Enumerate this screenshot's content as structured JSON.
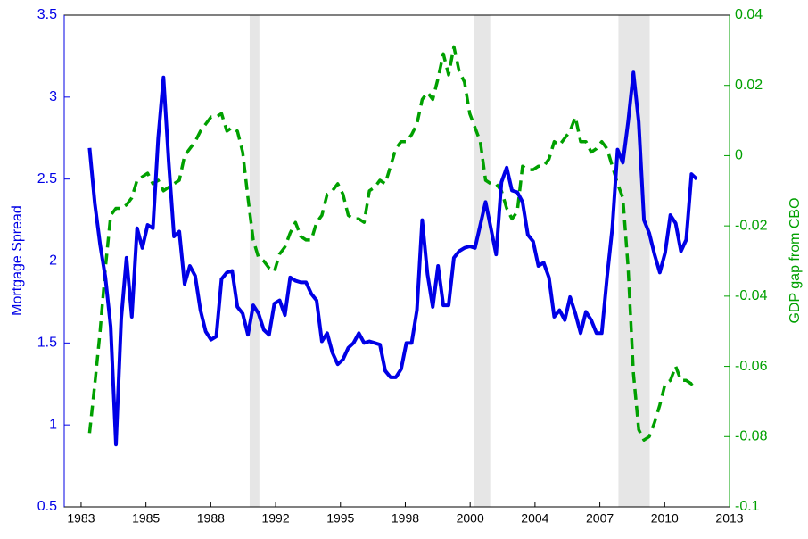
{
  "chart_data": {
    "type": "line",
    "y_label": "Mortgage Spread",
    "y2_label": "GDP gap from CBO",
    "x": [
      1983,
      1983.25,
      1983.5,
      1983.75,
      1984,
      1984.25,
      1984.5,
      1984.75,
      1985,
      1985.25,
      1985.5,
      1985.75,
      1986,
      1986.25,
      1986.5,
      1986.75,
      1987,
      1987.25,
      1987.5,
      1987.75,
      1988,
      1988.25,
      1988.5,
      1988.75,
      1989,
      1989.25,
      1989.5,
      1989.75,
      1990,
      1990.25,
      1990.5,
      1990.75,
      1991,
      1991.25,
      1991.5,
      1991.75,
      1992,
      1992.25,
      1992.5,
      1992.75,
      1993,
      1993.25,
      1993.5,
      1993.75,
      1994,
      1994.25,
      1994.5,
      1994.75,
      1995,
      1995.25,
      1995.5,
      1995.75,
      1996,
      1996.25,
      1996.5,
      1996.75,
      1997,
      1997.25,
      1997.5,
      1997.75,
      1998,
      1998.25,
      1998.5,
      1998.75,
      1999,
      1999.25,
      1999.5,
      1999.75,
      2000,
      2000.25,
      2000.5,
      2000.75,
      2001,
      2001.25,
      2001.5,
      2001.75,
      2002,
      2002.25,
      2002.5,
      2002.75,
      2003,
      2003.25,
      2003.5,
      2003.75,
      2004,
      2004.25,
      2004.5,
      2004.75,
      2005,
      2005.25,
      2005.5,
      2005.75,
      2006,
      2006.25,
      2006.5,
      2006.75,
      2007,
      2007.25,
      2007.5,
      2007.75,
      2008,
      2008.25,
      2008.5,
      2008.75,
      2009,
      2009.25,
      2009.5,
      2009.75,
      2010,
      2010.25,
      2010.5,
      2010.75,
      2011,
      2011.25,
      2011.5,
      2011.75
    ],
    "series": [
      {
        "color": "#0000e6",
        "values": [
          2.69,
          2.35,
          2.1,
          1.9,
          1.6,
          0.88,
          1.65,
          2.02,
          1.66,
          2.2,
          2.08,
          2.22,
          2.2,
          2.75,
          3.12,
          2.6,
          2.15,
          2.18,
          1.86,
          1.97,
          1.91,
          1.7,
          1.57,
          1.52,
          1.54,
          1.89,
          1.93,
          1.94,
          1.72,
          1.68,
          1.55,
          1.73,
          1.68,
          1.58,
          1.55,
          1.74,
          1.76,
          1.67,
          1.9,
          1.88,
          1.87,
          1.87,
          1.8,
          1.76,
          1.51,
          1.56,
          1.44,
          1.37,
          1.4,
          1.47,
          1.5,
          1.56,
          1.5,
          1.51,
          1.5,
          1.49,
          1.33,
          1.29,
          1.29,
          1.34,
          1.5,
          1.5,
          1.7,
          2.25,
          1.92,
          1.72,
          1.97,
          1.73,
          1.73,
          2.02,
          2.06,
          2.08,
          2.09,
          2.08,
          2.22,
          2.36,
          2.2,
          2.04,
          2.48,
          2.57,
          2.43,
          2.42,
          2.36,
          2.16,
          2.12,
          1.97,
          1.99,
          1.9,
          1.66,
          1.7,
          1.64,
          1.78,
          1.68,
          1.56,
          1.69,
          1.64,
          1.56,
          1.56,
          1.9,
          2.2,
          2.68,
          2.6,
          2.85,
          3.15,
          2.85,
          2.25,
          2.17,
          2.04,
          1.93,
          2.05,
          2.28,
          2.23,
          2.06,
          2.13,
          2.53,
          2.5
        ]
      },
      {
        "color": "#00a000",
        "axis": "y2",
        "dashed": true,
        "values": [
          -0.079,
          -0.065,
          -0.05,
          -0.032,
          -0.017,
          -0.015,
          -0.015,
          -0.014,
          -0.012,
          -0.007,
          -0.006,
          -0.005,
          -0.008,
          -0.007,
          -0.01,
          -0.009,
          -0.008,
          -0.007,
          0.0,
          0.002,
          0.004,
          0.007,
          0.009,
          0.011,
          0.011,
          0.012,
          0.007,
          0.008,
          0.007,
          0.001,
          -0.012,
          -0.024,
          -0.029,
          -0.03,
          -0.032,
          -0.033,
          -0.028,
          -0.026,
          -0.022,
          -0.019,
          -0.023,
          -0.024,
          -0.024,
          -0.019,
          -0.017,
          -0.011,
          -0.01,
          -0.008,
          -0.011,
          -0.017,
          -0.018,
          -0.018,
          -0.019,
          -0.01,
          -0.009,
          -0.007,
          -0.008,
          -0.003,
          0.002,
          0.004,
          0.004,
          0.006,
          0.009,
          0.016,
          0.018,
          0.016,
          0.022,
          0.029,
          0.023,
          0.031,
          0.024,
          0.021,
          0.012,
          0.008,
          0.004,
          -0.007,
          -0.008,
          -0.008,
          -0.01,
          -0.015,
          -0.018,
          -0.016,
          -0.003,
          -0.004,
          -0.004,
          -0.003,
          -0.003,
          -0.001,
          0.004,
          0.003,
          0.005,
          0.007,
          0.011,
          0.004,
          0.004,
          0.001,
          0.002,
          0.004,
          0.002,
          -0.003,
          -0.008,
          -0.012,
          -0.032,
          -0.062,
          -0.078,
          -0.081,
          -0.08,
          -0.076,
          -0.071,
          -0.065,
          -0.064,
          -0.06,
          -0.064,
          -0.064,
          -0.065,
          -0.064
        ]
      }
    ],
    "shaded_periods": [
      [
        1990.58,
        1991.04
      ],
      [
        2001.21,
        2001.97
      ],
      [
        2008.04,
        2009.52
      ]
    ],
    "shade_color": "#e6e6e6",
    "xlim": [
      1981.8,
      2013.3
    ],
    "xticks": [
      {
        "value": 1982.6,
        "label": "1983"
      },
      {
        "value": 1985.67,
        "label": "1985"
      },
      {
        "value": 1988.74,
        "label": "1988"
      },
      {
        "value": 1991.81,
        "label": "1992"
      },
      {
        "value": 1994.88,
        "label": "1995"
      },
      {
        "value": 1997.95,
        "label": "1998"
      },
      {
        "value": 2001.02,
        "label": "2000"
      },
      {
        "value": 2004.09,
        "label": "2004"
      },
      {
        "value": 2007.16,
        "label": "2007"
      },
      {
        "value": 2010.23,
        "label": "2010"
      },
      {
        "value": 2013.3,
        "label": "2013"
      }
    ],
    "ylim": [
      0.5,
      3.5
    ],
    "yticks": [
      0.5,
      1,
      1.5,
      2,
      2.5,
      3,
      3.5
    ],
    "y2lim": [
      -0.1,
      0.04
    ],
    "y2ticks": [
      -0.1,
      -0.08,
      -0.06,
      -0.04,
      -0.02,
      0,
      0.02,
      0.04
    ]
  }
}
